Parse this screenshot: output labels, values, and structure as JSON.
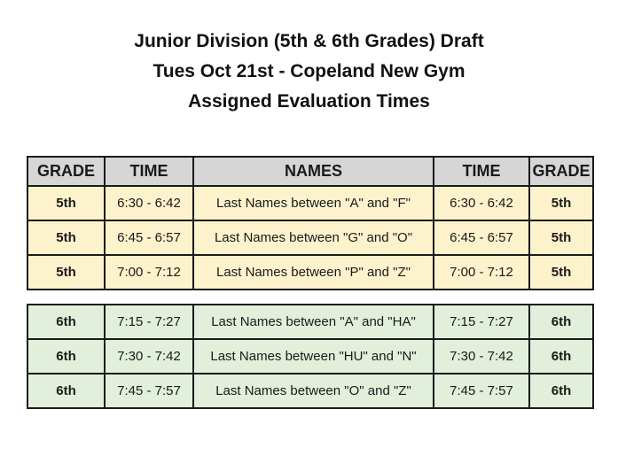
{
  "title": {
    "line1": "Junior Division (5th & 6th Grades) Draft",
    "line2": "Tues Oct 21st - Copeland New Gym",
    "line3": "Assigned Evaluation Times"
  },
  "colors": {
    "header_bg": "#d6d6d6",
    "grade5_bg": "#fcf2cc",
    "grade6_bg": "#e2efda",
    "border": "#1a1a1a",
    "text": "#1a1a1a"
  },
  "table": {
    "headers": [
      "GRADE",
      "TIME",
      "NAMES",
      "TIME",
      "GRADE"
    ],
    "rows_5th": [
      [
        "5th",
        "6:30 - 6:42",
        "Last Names between \"A\" and \"F\"",
        "6:30 - 6:42",
        "5th"
      ],
      [
        "5th",
        "6:45 - 6:57",
        "Last Names between \"G\" and \"O\"",
        "6:45 - 6:57",
        "5th"
      ],
      [
        "5th",
        "7:00 - 7:12",
        "Last Names between \"P\" and \"Z\"",
        "7:00 - 7:12",
        "5th"
      ]
    ],
    "rows_6th": [
      [
        "6th",
        "7:15 - 7:27",
        "Last Names between \"A\" and \"HA\"",
        "7:15 - 7:27",
        "6th"
      ],
      [
        "6th",
        "7:30 - 7:42",
        "Last Names between \"HU\" and \"N\"",
        "7:30 - 7:42",
        "6th"
      ],
      [
        "6th",
        "7:45 - 7:57",
        "Last Names between \"O\" and \"Z\"",
        "7:45 - 7:57",
        "6th"
      ]
    ]
  }
}
